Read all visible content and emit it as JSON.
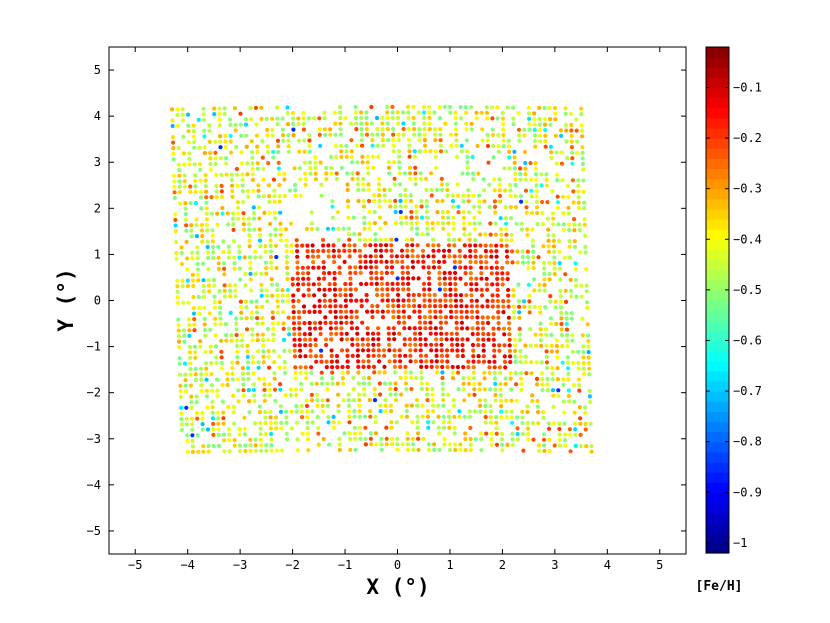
{
  "chart_data": {
    "type": "scatter",
    "title": "",
    "xlabel": "X (°)",
    "ylabel": "Y (°)",
    "xlim": [
      -5.5,
      5.5
    ],
    "ylim": [
      -5.5,
      5.5
    ],
    "x_ticks": [
      -5,
      -4,
      -3,
      -2,
      -1,
      0,
      1,
      2,
      3,
      4,
      5
    ],
    "y_ticks": [
      -5,
      -4,
      -3,
      -2,
      -1,
      0,
      1,
      2,
      3,
      4,
      5
    ],
    "grid": false,
    "colorbar": {
      "label": "[Fe/H]",
      "range": [
        -1.02,
        -0.02
      ],
      "ticks": [
        "-0.1",
        "-0.2",
        "-0.3",
        "-0.4",
        "-0.5",
        "-0.6",
        "-0.7",
        "-0.8",
        "-0.9",
        "-1"
      ],
      "colormap": "jet",
      "levels": 50
    },
    "field": {
      "x_range_at_top": [
        -4.3,
        3.6
      ],
      "x_range_at_bottom": [
        -4.1,
        3.8
      ],
      "y_range": [
        -3.3,
        4.25
      ],
      "row_spacing_deg": 0.12,
      "point_spacing_deg": 0.1,
      "typical_feh": -0.42,
      "central_metal_rich_feh": -0.2,
      "central_region": {
        "x_range": [
          -2.0,
          2.2
        ],
        "y_range": [
          -1.5,
          1.2
        ]
      }
    },
    "points_note": "several thousand points arranged in curved rows; metallicity values individually unreadable"
  }
}
